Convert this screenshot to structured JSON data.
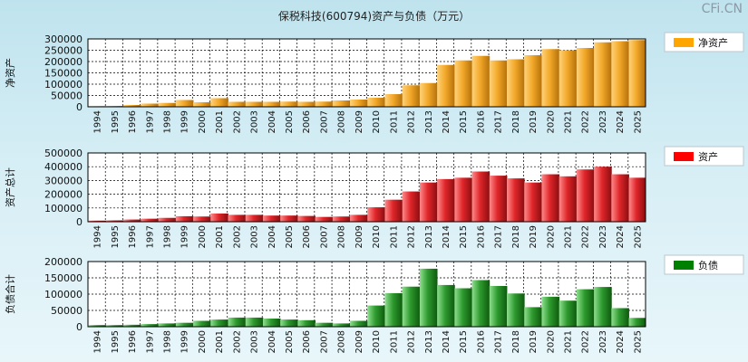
{
  "title": "保税科技(600794)资产与负债（万元）",
  "watermark": "CFi.CN",
  "chart_data": [
    {
      "type": "bar",
      "ylabel": "净资产",
      "legend": "净资产",
      "colors": {
        "light": "#ffd27a",
        "mid": "#f3a92a",
        "dark": "#b4700a",
        "legend": "#ffa500"
      },
      "ylim": [
        0,
        300000
      ],
      "yticks": [
        0,
        50000,
        100000,
        150000,
        200000,
        250000,
        300000
      ],
      "categories": [
        "1994",
        "1995",
        "1996",
        "1997",
        "1998",
        "1999",
        "2000",
        "2001",
        "2002",
        "2003",
        "2004",
        "2005",
        "2006",
        "2007",
        "2008",
        "2009",
        "2010",
        "2011",
        "2012",
        "2013",
        "2014",
        "2015",
        "2016",
        "2017",
        "2018",
        "2019",
        "2020",
        "2021",
        "2022",
        "2023",
        "2024",
        "2025"
      ],
      "values": [
        3000,
        4000,
        8000,
        14000,
        17000,
        30000,
        20000,
        38000,
        22000,
        22000,
        22000,
        23000,
        22000,
        23000,
        28000,
        32000,
        40000,
        56000,
        95000,
        105000,
        185000,
        205000,
        225000,
        205000,
        210000,
        228000,
        255000,
        250000,
        260000,
        285000,
        290000,
        295000
      ]
    },
    {
      "type": "bar",
      "ylabel": "资产总计",
      "legend": "资产",
      "colors": {
        "light": "#ff8a8a",
        "mid": "#e0262a",
        "dark": "#8a0d10",
        "legend": "#ff0000"
      },
      "ylim": [
        0,
        500000
      ],
      "yticks": [
        0,
        100000,
        200000,
        300000,
        400000,
        500000
      ],
      "categories": [
        "1994",
        "1995",
        "1996",
        "1997",
        "1998",
        "1999",
        "2000",
        "2001",
        "2002",
        "2003",
        "2004",
        "2005",
        "2006",
        "2007",
        "2008",
        "2009",
        "2010",
        "2011",
        "2012",
        "2013",
        "2014",
        "2015",
        "2016",
        "2017",
        "2018",
        "2019",
        "2020",
        "2021",
        "2022",
        "2023",
        "2024",
        "2025"
      ],
      "values": [
        8000,
        10000,
        16000,
        22000,
        28000,
        40000,
        38000,
        60000,
        50000,
        50000,
        45000,
        45000,
        42000,
        35000,
        38000,
        50000,
        105000,
        160000,
        220000,
        285000,
        310000,
        320000,
        365000,
        335000,
        315000,
        285000,
        345000,
        330000,
        380000,
        400000,
        345000,
        320000
      ]
    },
    {
      "type": "bar",
      "ylabel": "负债合计",
      "legend": "负债",
      "colors": {
        "light": "#8ee08e",
        "mid": "#2e9a2e",
        "dark": "#0d5a0d",
        "legend": "#008000"
      },
      "ylim": [
        0,
        200000
      ],
      "yticks": [
        0,
        50000,
        100000,
        150000,
        200000
      ],
      "categories": [
        "1994",
        "1995",
        "1996",
        "1997",
        "1998",
        "1999",
        "2000",
        "2001",
        "2002",
        "2003",
        "2004",
        "2005",
        "2006",
        "2007",
        "2008",
        "2009",
        "2010",
        "2011",
        "2012",
        "2013",
        "2014",
        "2015",
        "2016",
        "2017",
        "2018",
        "2019",
        "2020",
        "2021",
        "2022",
        "2023",
        "2024",
        "2025"
      ],
      "values": [
        5000,
        5000,
        6000,
        8000,
        10000,
        12000,
        18000,
        22000,
        28000,
        28000,
        25000,
        22000,
        20000,
        12000,
        10000,
        18000,
        65000,
        103000,
        123000,
        178000,
        128000,
        118000,
        143000,
        125000,
        102000,
        60000,
        92000,
        80000,
        115000,
        122000,
        57000,
        27000
      ]
    }
  ]
}
